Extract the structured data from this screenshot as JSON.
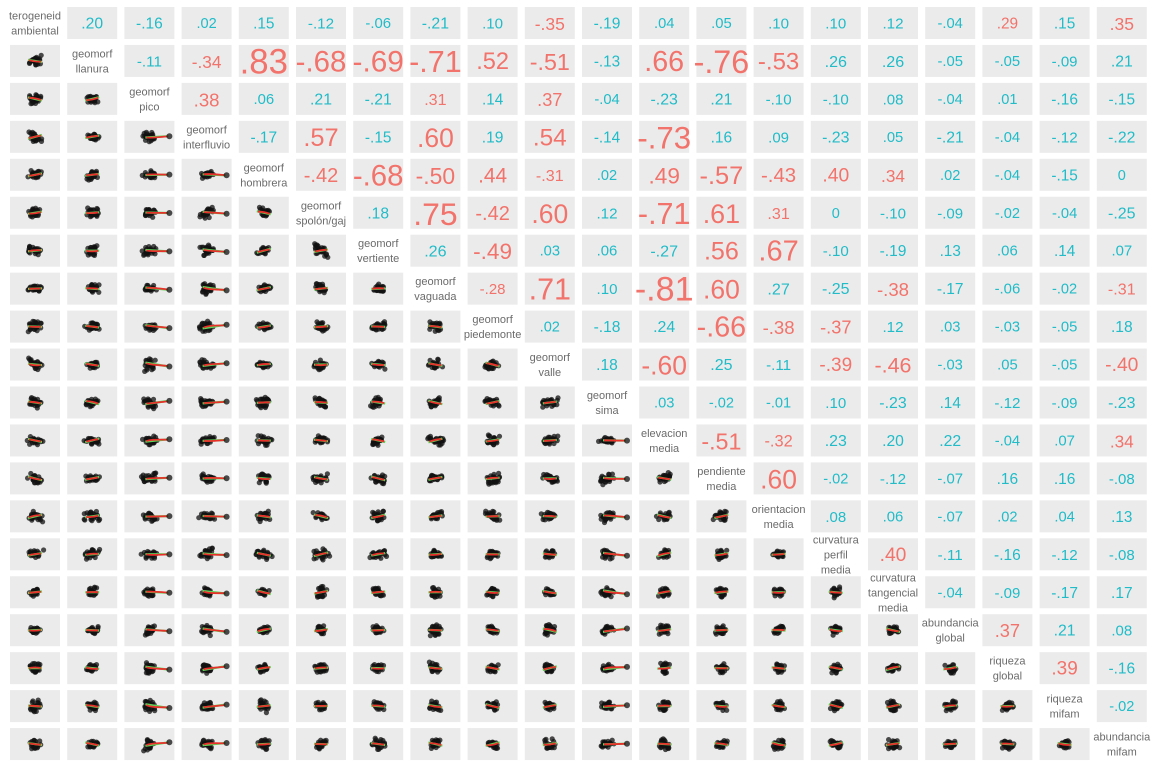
{
  "chart_data": {
    "type": "scatterplot-matrix",
    "variables": [
      "heterogeneidad ambiental",
      "geomorf llanura",
      "geomorf pico",
      "geomorf interfluvio",
      "geomorf hombrera",
      "geomorf spolón/gaj",
      "geomorf vertiente",
      "geomorf vaguada",
      "geomorf piedemonte",
      "geomorf valle",
      "geomorf sima",
      "elevacion media",
      "pendiente media",
      "orientacion media",
      "curvatura perfil media",
      "curvatura tangencial media",
      "abundancia global",
      "riqueza global",
      "riqueza mifam",
      "abundancia mifam"
    ],
    "diagonal_labels": [
      [
        "terogeneid",
        "ambiental"
      ],
      [
        "geomorf",
        "llanura"
      ],
      [
        "geomorf",
        "pico"
      ],
      [
        "geomorf",
        "interfluvio"
      ],
      [
        "geomorf",
        "hombrera"
      ],
      [
        "geomorf",
        "spolón/gaj"
      ],
      [
        "geomorf",
        "vertiente"
      ],
      [
        "geomorf",
        "vaguada"
      ],
      [
        "geomorf",
        "piedemonte"
      ],
      [
        "geomorf",
        "valle"
      ],
      [
        "geomorf",
        "sima"
      ],
      [
        "elevacion",
        "media"
      ],
      [
        "pendiente",
        "media"
      ],
      [
        "orientacion",
        "media"
      ],
      [
        "curvatura",
        "perfil",
        "media"
      ],
      [
        "curvatura",
        "tangencial",
        "media"
      ],
      [
        "abundancia",
        "global"
      ],
      [
        "riqueza",
        "global"
      ],
      [
        "riqueza",
        "mifam"
      ],
      [
        "abundancia",
        "mifam"
      ]
    ],
    "upper_correlations": [
      [
        ".20",
        "-.16",
        ".02",
        ".15",
        "-.12",
        "-.06",
        "-.21",
        ".10",
        "-.35",
        "-.19",
        ".04",
        ".05",
        ".10",
        ".10",
        ".12",
        "-.04",
        ".29",
        ".15",
        ".35"
      ],
      [
        "-.11",
        "-.34",
        ".83",
        "-.68",
        "-.69",
        "-.71",
        ".52",
        "-.51",
        "-.13",
        ".66",
        "-.76",
        "-.53",
        ".26",
        ".26",
        "-.05",
        "-.05",
        "-.09",
        ".21"
      ],
      [
        ".38",
        ".06",
        ".21",
        "-.21",
        ".31",
        ".14",
        ".37",
        "-.04",
        "-.23",
        ".21",
        "-.10",
        "-.10",
        ".08",
        "-.04",
        ".01",
        "-.16",
        "-.15"
      ],
      [
        "-.17",
        ".57",
        "-.15",
        ".60",
        ".19",
        ".54",
        "-.14",
        "-.73",
        ".16",
        ".09",
        "-.23",
        ".05",
        "-.21",
        "-.04",
        "-.12",
        "-.22"
      ],
      [
        "-.42",
        "-.68",
        "-.50",
        ".44",
        "-.31",
        ".02",
        ".49",
        "-.57",
        "-.43",
        ".40",
        ".34",
        ".02",
        "-.04",
        "-.15",
        "0"
      ],
      [
        ".18",
        ".75",
        "-.42",
        ".60",
        ".12",
        "-.71",
        ".61",
        ".31",
        "0",
        "-.10",
        "-.09",
        "-.02",
        "-.04",
        "-.25"
      ],
      [
        ".26",
        "-.49",
        ".03",
        ".06",
        "-.27",
        ".56",
        ".67",
        "-.10",
        "-.19",
        ".13",
        ".06",
        ".14",
        ".07"
      ],
      [
        "-.28",
        ".71",
        ".10",
        "-.81",
        ".60",
        ".27",
        "-.25",
        "-.38",
        "-.17",
        "-.06",
        "-.02",
        "-.31"
      ],
      [
        ".02",
        "-.18",
        ".24",
        "-.66",
        "-.38",
        "-.37",
        ".12",
        ".03",
        "-.03",
        "-.05",
        ".18"
      ],
      [
        ".18",
        "-.60",
        ".25",
        "-.11",
        "-.39",
        "-.46",
        "-.03",
        ".05",
        "-.05",
        "-.40"
      ],
      [
        ".03",
        "-.02",
        "-.01",
        ".10",
        "-.23",
        ".14",
        "-.12",
        "-.09",
        "-.23"
      ],
      [
        "-.51",
        "-.32",
        ".23",
        ".20",
        ".22",
        "-.04",
        ".07",
        ".34"
      ],
      [
        ".60",
        "-.02",
        "-.12",
        "-.07",
        ".16",
        ".16",
        "-.08"
      ],
      [
        ".08",
        ".06",
        "-.07",
        ".02",
        ".04",
        ".13"
      ],
      [
        ".40",
        "-.11",
        "-.16",
        "-.12",
        "-.08"
      ],
      [
        "-.04",
        "-.09",
        "-.17",
        ".17"
      ],
      [
        ".37",
        ".21",
        ".08"
      ],
      [
        ".39",
        "-.16"
      ],
      [
        "-.02"
      ]
    ],
    "colors": {
      "positive_strong": "#f2736b",
      "weak": "#20bcc8",
      "panel_background": "#ebebeb",
      "points": "#111111",
      "linear_fit": "#5fd35a",
      "smooth_fit": "#e8302a",
      "diagonal_text": "#6b6b6b"
    },
    "lower_panels": "scatterplots with linear fit and smoother",
    "grid": false,
    "legend": "none"
  }
}
